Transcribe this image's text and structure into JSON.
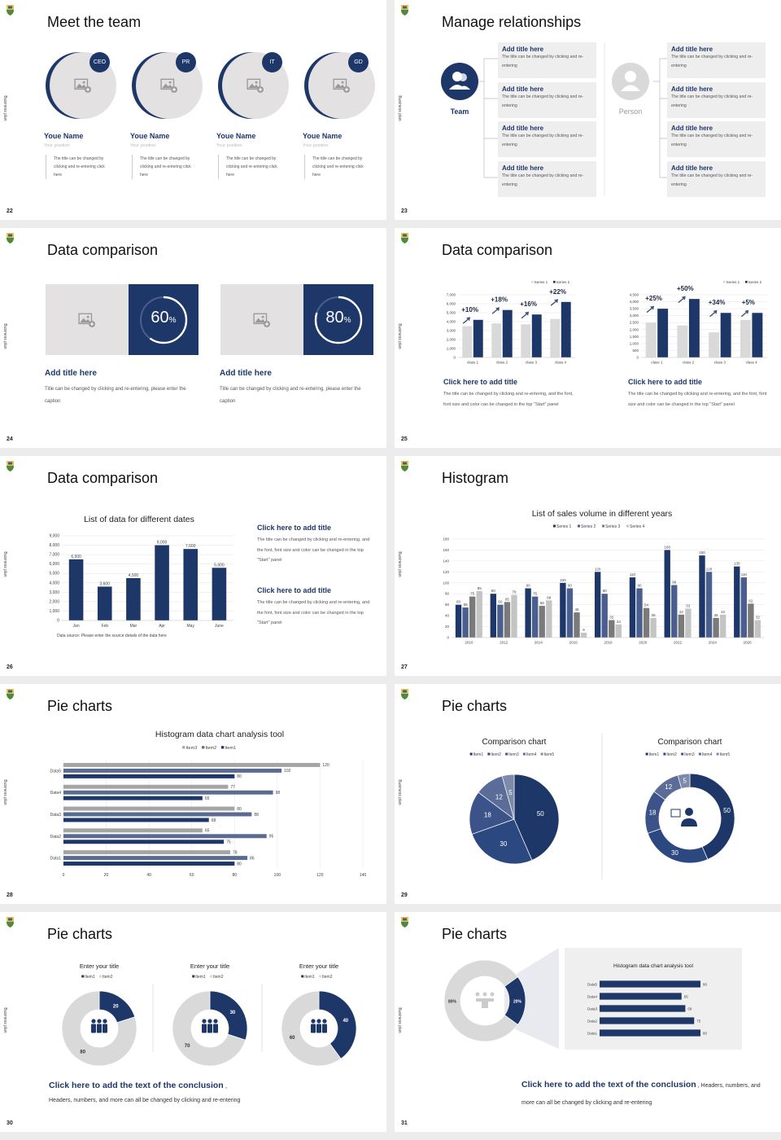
{
  "side_label": "Business plan",
  "colors": {
    "navy": "#1e3769",
    "gray": "#d9d9d9"
  },
  "slides": [
    {
      "num": "22",
      "title": "Meet the team",
      "members": [
        {
          "badge": "CEO",
          "name": "Youe Name",
          "position": "Your position",
          "desc": "The title can be changed by clicking and re-entering click here"
        },
        {
          "badge": "PR",
          "name": "Youe Name",
          "position": "Your position",
          "desc": "The title can be changed by clicking and re-entering click here"
        },
        {
          "badge": "IT",
          "name": "Youe Name",
          "position": "Your position",
          "desc": "The title can be changed by clicking and re-entering click here"
        },
        {
          "badge": "GD",
          "name": "Youe Name",
          "position": "Your position",
          "desc": "The title can be changed by clicking and re-entering click here"
        }
      ]
    },
    {
      "num": "23",
      "title": "Manage relationships",
      "team_label": "Team",
      "person_label": "Person",
      "left_items": [
        {
          "title": "Add title here",
          "text": "The title can be changed by clicking and re-entering"
        },
        {
          "title": "Add title here",
          "text": "The title can be changed by clicking and re-entering"
        },
        {
          "title": "Add title here",
          "text": "The title can be changed by clicking and re-entering"
        },
        {
          "title": "Add title here",
          "text": "The title can be changed by clicking and re-entering"
        }
      ],
      "right_items": [
        {
          "title": "Add title here",
          "text": "The title can be changed by clicking and re-entering"
        },
        {
          "title": "Add title here",
          "text": "The title can be changed by clicking and re-entering"
        },
        {
          "title": "Add title here",
          "text": "The title can be changed by clicking and re-entering"
        },
        {
          "title": "Add title here",
          "text": "The title can be changed by clicking and re-entering"
        }
      ]
    },
    {
      "num": "24",
      "title": "Data comparison",
      "cards": [
        {
          "value": 60,
          "number": "60",
          "unit": "%",
          "title": "Add title here",
          "text": "Title can be changed by clicking and re-entering, please enter the caption"
        },
        {
          "value": 80,
          "number": "80",
          "unit": "%",
          "title": "Add title here",
          "text": "Title can be changed by clicking and re-entering, please enter the caption"
        }
      ]
    },
    {
      "num": "25",
      "title": "Data comparison",
      "blocks": [
        {
          "title": "Click here to add title",
          "text": "The title can be changed by clicking and re-entering, and the font, font size and color can be changed in the top \"Start\" panel"
        },
        {
          "title": "Click here to add title",
          "text": "The title can be changed by clicking and re-entering, and the font, font size and color can be changed in the top \"Start\" panel"
        }
      ]
    },
    {
      "num": "26",
      "title": "Data comparison",
      "source": "Data source: Please enter the source details of the data here",
      "blocks": [
        {
          "title": "Click here to add title",
          "text": "The title can be changed by clicking and re-entering, and the font, font size and color can be changed in the top \"Start\" panel"
        },
        {
          "title": "Click here to add title",
          "text": "The title can be changed by clicking and re-entering, and the font, font size and color can be changed in the top \"Start\" panel"
        }
      ]
    },
    {
      "num": "27",
      "title": "Histogram"
    },
    {
      "num": "28",
      "title": "Pie charts"
    },
    {
      "num": "29",
      "title": "Pie charts"
    },
    {
      "num": "30",
      "title": "Pie charts",
      "conclusion_title": "Click here to add the text of the conclusion",
      "conclusion_sep": " ,",
      "conclusion_text": "Headers, numbers, and more can all be changed by clicking and re-entering"
    },
    {
      "num": "31",
      "title": "Pie charts",
      "conclusion_title": "Click here to add the text of the conclusion",
      "conclusion_text": " , Headers, numbers, and more can all be changed by clicking and re-entering"
    }
  ],
  "chart_data": [
    {
      "type": "bar",
      "categories": [
        "class 1",
        "class 2",
        "class 3",
        "class 4"
      ],
      "series": [
        {
          "name": "Series 1",
          "values": [
            3500,
            3800,
            3700,
            4300
          ]
        },
        {
          "name": "Series 2",
          "values": [
            4200,
            5300,
            4800,
            6200
          ]
        }
      ],
      "annotations": [
        "+10%",
        "+18%",
        "+16%",
        "+22%"
      ],
      "ylim": [
        0,
        7000
      ],
      "ytick": 1000,
      "grid": true,
      "legend": "top-right",
      "colors": [
        "#d9d9d9",
        "#1e3769"
      ]
    },
    {
      "type": "bar",
      "categories": [
        "class 1",
        "class 2",
        "class 3",
        "class 4"
      ],
      "series": [
        {
          "name": "Series 1",
          "values": [
            2500,
            2300,
            1800,
            2700
          ]
        },
        {
          "name": "Series 2",
          "values": [
            3500,
            4200,
            3200,
            3200
          ]
        }
      ],
      "annotations": [
        "+25%",
        "+50%",
        "+34%",
        "+5%"
      ],
      "ylim": [
        0,
        4500
      ],
      "ytick": 500,
      "grid": true,
      "legend": "top-right",
      "colors": [
        "#d9d9d9",
        "#1e3769"
      ]
    },
    {
      "type": "bar",
      "title": "List of data for different dates",
      "categories": [
        "Jan",
        "Feb",
        "Mar",
        "Apr",
        "May",
        "June"
      ],
      "series": [
        {
          "values": [
            6500,
            3600,
            4500,
            8000,
            7600,
            5600
          ]
        }
      ],
      "data_labels": [
        "6,500",
        "3,600",
        "4,500",
        "8,000",
        "7,600",
        "5,600"
      ],
      "ylim": [
        0,
        9000
      ],
      "ytick": 1000,
      "grid": true,
      "colors": [
        "#1e3769"
      ]
    },
    {
      "type": "bar",
      "title": "List of sales volume in different years",
      "categories": [
        "2010",
        "2012",
        "2014",
        "2016",
        "2018",
        "2020",
        "2022",
        "2024",
        "2026"
      ],
      "series": [
        {
          "name": "Series 1",
          "values": [
            60,
            80,
            90,
            100,
            120,
            110,
            160,
            150,
            130
          ]
        },
        {
          "name": "Series 2",
          "values": [
            55,
            60,
            75,
            90,
            80,
            90,
            96,
            120,
            110
          ]
        },
        {
          "name": "Series 3",
          "values": [
            75,
            65,
            58,
            46,
            32,
            54,
            42,
            36,
            62
          ]
        },
        {
          "name": "Series 4",
          "values": [
            85,
            78,
            68,
            9,
            24,
            36,
            53,
            42,
            32
          ]
        }
      ],
      "ylim": [
        0,
        180
      ],
      "ytick": 20,
      "grid": true,
      "legend": "top",
      "colors": [
        "#1e3769",
        "#4a5f8f",
        "#7a7a7a",
        "#c4c4c4"
      ]
    },
    {
      "type": "hbar",
      "title": "Histogram data chart analysis tool",
      "categories": [
        "Data1",
        "Data2",
        "Data3",
        "Data4",
        "Data5"
      ],
      "series": [
        {
          "name": "Item1",
          "values": [
            80,
            75,
            68,
            65,
            80
          ]
        },
        {
          "name": "Item2",
          "values": [
            86,
            95,
            88,
            98,
            102
          ]
        },
        {
          "name": "Item3",
          "values": [
            78,
            65,
            80,
            77,
            120
          ]
        }
      ],
      "xlim": [
        0,
        140
      ],
      "xtick": 20,
      "grid": true,
      "legend": "top",
      "colors": [
        "#1e3769",
        "#5a6b92",
        "#a5a5a5"
      ]
    },
    {
      "type": "pie",
      "title": "Comparison chart",
      "labels": [
        "Item1",
        "Item2",
        "Item3",
        "Item4",
        "Item5"
      ],
      "values": [
        50,
        30,
        18,
        12,
        5
      ],
      "legend": "top",
      "colors": [
        "#1e3769",
        "#2c4880",
        "#3c5389",
        "#5a6c97",
        "#7d8aaa"
      ]
    },
    {
      "type": "pie",
      "donut": true,
      "title": "Comparison chart",
      "labels": [
        "Item1",
        "Item2",
        "Item3",
        "Item4",
        "Item5"
      ],
      "values": [
        50,
        30,
        18,
        12,
        5
      ],
      "legend": "top",
      "colors": [
        "#1e3769",
        "#2c4880",
        "#3c5389",
        "#5a6c97",
        "#7d8aaa"
      ]
    },
    {
      "type": "pie",
      "donut": true,
      "title": "Enter your title",
      "labels": [
        "Item1",
        "Item2"
      ],
      "values": [
        20,
        80
      ],
      "legend": "top",
      "colors": [
        "#1e3769",
        "#d9d9d9"
      ]
    },
    {
      "type": "pie",
      "donut": true,
      "title": "Enter your title",
      "labels": [
        "Item1",
        "Item2"
      ],
      "values": [
        30,
        70
      ],
      "legend": "top",
      "colors": [
        "#1e3769",
        "#d9d9d9"
      ]
    },
    {
      "type": "pie",
      "donut": true,
      "title": "Enter your title",
      "labels": [
        "Item1",
        "Item2"
      ],
      "values": [
        40,
        60
      ],
      "legend": "top",
      "colors": [
        "#1e3769",
        "#d9d9d9"
      ]
    },
    {
      "type": "pie",
      "donut": true,
      "values": [
        20,
        80
      ],
      "data_labels": [
        "20%",
        "80%"
      ],
      "colors": [
        "#1e3769",
        "#d9d9d9"
      ]
    },
    {
      "type": "hbar",
      "title": "Histogram data chart analysis tool",
      "categories": [
        "Data1",
        "Data2",
        "Data3",
        "Data4",
        "Data5"
      ],
      "series": [
        {
          "values": [
            80,
            75,
            68,
            65,
            80
          ]
        }
      ],
      "xlim": [
        0,
        80
      ],
      "grid": false,
      "colors": [
        "#1e3769"
      ]
    }
  ]
}
